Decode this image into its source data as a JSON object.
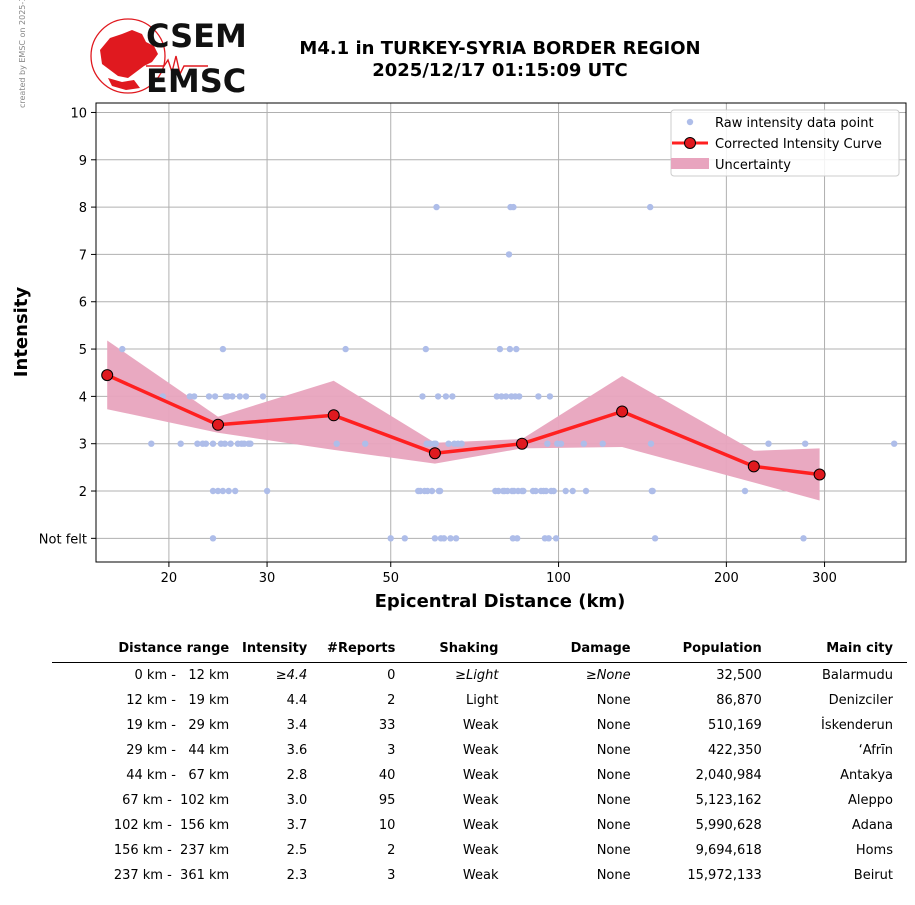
{
  "credit": "created by EMSC on 2025-12-18 01:00:31 UTC",
  "logo": {
    "top_text": "CSEM",
    "bottom_text": "EMSC"
  },
  "title": {
    "line1": "M4.1 in TURKEY-SYRIA BORDER REGION",
    "line2": "2025/12/17 01:15:09 UTC"
  },
  "colors": {
    "raw": "#aebde9",
    "curve": "#ff2020",
    "marker": "#e0191f",
    "band": "#e8a4be",
    "grid": "#b0b0b0"
  },
  "chart_data": {
    "type": "scatter",
    "xlabel": "Epicentral Distance (km)",
    "ylabel": "Intensity",
    "xscale": "log",
    "xlim": [
      14.8,
      420
    ],
    "ylim": [
      0.5,
      10.2
    ],
    "xticks": [
      20,
      30,
      50,
      100,
      200,
      300
    ],
    "yticks": [
      {
        "value": 1,
        "label": "Not felt"
      },
      {
        "value": 2,
        "label": "2"
      },
      {
        "value": 3,
        "label": "3"
      },
      {
        "value": 4,
        "label": "4"
      },
      {
        "value": 5,
        "label": "5"
      },
      {
        "value": 6,
        "label": "6"
      },
      {
        "value": 7,
        "label": "7"
      },
      {
        "value": 8,
        "label": "8"
      },
      {
        "value": 9,
        "label": "9"
      },
      {
        "value": 10,
        "label": "10"
      }
    ],
    "grid": true,
    "legend": {
      "position": "top-right",
      "entries": [
        "Raw intensity data point",
        "Corrected Intensity Curve",
        "Uncertainty"
      ]
    },
    "raw_points": [
      [
        16.5,
        5
      ],
      [
        18.6,
        3
      ],
      [
        19.5,
        4
      ],
      [
        21,
        3
      ],
      [
        21.8,
        4
      ],
      [
        22.2,
        4
      ],
      [
        22.5,
        3
      ],
      [
        23,
        3
      ],
      [
        23.3,
        3
      ],
      [
        23.6,
        4
      ],
      [
        24,
        2
      ],
      [
        24,
        3
      ],
      [
        24,
        1
      ],
      [
        24.2,
        4
      ],
      [
        24.5,
        2
      ],
      [
        24.8,
        3
      ],
      [
        25,
        5
      ],
      [
        25,
        2
      ],
      [
        25.2,
        3
      ],
      [
        25.3,
        4
      ],
      [
        25.5,
        4
      ],
      [
        25.6,
        2
      ],
      [
        25.8,
        3
      ],
      [
        26,
        4
      ],
      [
        26.3,
        2
      ],
      [
        26.6,
        3
      ],
      [
        26.8,
        4
      ],
      [
        27,
        3
      ],
      [
        27.3,
        3
      ],
      [
        27.5,
        4
      ],
      [
        27.8,
        3
      ],
      [
        28,
        3
      ],
      [
        29.5,
        4
      ],
      [
        30,
        2
      ],
      [
        40,
        3
      ],
      [
        41.5,
        5
      ],
      [
        45,
        3
      ],
      [
        50,
        1
      ],
      [
        53,
        1
      ],
      [
        56,
        2
      ],
      [
        56.5,
        2
      ],
      [
        57,
        4
      ],
      [
        57.5,
        2
      ],
      [
        57.8,
        5
      ],
      [
        58,
        3
      ],
      [
        58.2,
        2
      ],
      [
        58.8,
        3
      ],
      [
        59.3,
        2
      ],
      [
        59.8,
        3
      ],
      [
        60,
        1
      ],
      [
        60.2,
        3
      ],
      [
        60.4,
        8
      ],
      [
        60.8,
        4
      ],
      [
        61,
        2
      ],
      [
        61.3,
        2
      ],
      [
        61.5,
        1
      ],
      [
        62.3,
        1
      ],
      [
        62.8,
        4
      ],
      [
        63.5,
        3
      ],
      [
        64,
        1
      ],
      [
        64.5,
        4
      ],
      [
        65,
        3
      ],
      [
        65.5,
        1
      ],
      [
        66,
        3
      ],
      [
        67,
        3
      ],
      [
        77,
        2
      ],
      [
        77.5,
        4
      ],
      [
        78,
        2
      ],
      [
        78.5,
        5
      ],
      [
        79,
        4
      ],
      [
        79.5,
        2
      ],
      [
        80,
        2
      ],
      [
        80.5,
        4
      ],
      [
        81,
        2
      ],
      [
        81.5,
        7
      ],
      [
        81.8,
        5
      ],
      [
        82,
        8
      ],
      [
        82.3,
        4
      ],
      [
        82.5,
        2
      ],
      [
        82.8,
        1
      ],
      [
        83,
        8
      ],
      [
        83.2,
        2
      ],
      [
        83.6,
        4
      ],
      [
        84,
        5
      ],
      [
        84.3,
        1
      ],
      [
        84.6,
        2
      ],
      [
        85,
        4
      ],
      [
        85.5,
        3
      ],
      [
        86,
        2
      ],
      [
        86.5,
        2
      ],
      [
        87,
        3
      ],
      [
        90,
        2
      ],
      [
        91,
        2
      ],
      [
        92,
        4
      ],
      [
        93,
        2
      ],
      [
        94,
        2
      ],
      [
        94.5,
        1
      ],
      [
        95,
        2
      ],
      [
        95.5,
        3
      ],
      [
        96,
        1
      ],
      [
        96.5,
        4
      ],
      [
        97,
        2
      ],
      [
        98,
        2
      ],
      [
        99,
        1
      ],
      [
        99.5,
        3
      ],
      [
        101,
        3
      ],
      [
        103,
        2
      ],
      [
        106,
        2
      ],
      [
        111,
        3
      ],
      [
        112,
        2
      ],
      [
        120,
        3
      ],
      [
        146,
        8
      ],
      [
        146.5,
        3
      ],
      [
        147,
        2
      ],
      [
        147.5,
        2
      ],
      [
        149,
        1
      ],
      [
        216,
        2
      ],
      [
        238,
        3
      ],
      [
        275,
        1
      ],
      [
        277,
        3
      ],
      [
        400,
        3
      ]
    ],
    "curve": {
      "x": [
        15.5,
        24.5,
        39.5,
        60,
        86,
        130,
        224,
        294
      ],
      "y": [
        4.45,
        3.4,
        3.6,
        2.8,
        3.0,
        3.68,
        2.52,
        2.35
      ]
    },
    "uncertainty": {
      "x": [
        15.5,
        24.5,
        39.5,
        60,
        86,
        130,
        224,
        294
      ],
      "lower": [
        3.73,
        3.23,
        2.87,
        2.58,
        2.9,
        2.93,
        2.18,
        1.8
      ],
      "upper": [
        5.18,
        3.57,
        4.33,
        3.02,
        3.1,
        4.43,
        2.85,
        2.9
      ]
    }
  },
  "table": {
    "headers": [
      "Distance range",
      "Intensity",
      "#Reports",
      "Shaking",
      "Damage",
      "Population",
      "Main city"
    ],
    "rows": [
      {
        "range": "0 km -   12 km",
        "intensity": "≥4.4",
        "reports": "0",
        "shaking": "≥Light",
        "damage": "≥None",
        "population": "32,500",
        "city": "Balarmudu",
        "italic": true
      },
      {
        "range": "12 km -   19 km",
        "intensity": "4.4",
        "reports": "2",
        "shaking": "Light",
        "damage": "None",
        "population": "86,870",
        "city": "Denizciler"
      },
      {
        "range": "19 km -   29 km",
        "intensity": "3.4",
        "reports": "33",
        "shaking": "Weak",
        "damage": "None",
        "population": "510,169",
        "city": "İskenderun"
      },
      {
        "range": "29 km -   44 km",
        "intensity": "3.6",
        "reports": "3",
        "shaking": "Weak",
        "damage": "None",
        "population": "422,350",
        "city": "‘Afrīn"
      },
      {
        "range": "44 km -   67 km",
        "intensity": "2.8",
        "reports": "40",
        "shaking": "Weak",
        "damage": "None",
        "population": "2,040,984",
        "city": "Antakya"
      },
      {
        "range": "67 km -  102 km",
        "intensity": "3.0",
        "reports": "95",
        "shaking": "Weak",
        "damage": "None",
        "population": "5,123,162",
        "city": "Aleppo"
      },
      {
        "range": "102 km -  156 km",
        "intensity": "3.7",
        "reports": "10",
        "shaking": "Weak",
        "damage": "None",
        "population": "5,990,628",
        "city": "Adana"
      },
      {
        "range": "156 km -  237 km",
        "intensity": "2.5",
        "reports": "2",
        "shaking": "Weak",
        "damage": "None",
        "population": "9,694,618",
        "city": "Homs"
      },
      {
        "range": "237 km -  361 km",
        "intensity": "2.3",
        "reports": "3",
        "shaking": "Weak",
        "damage": "None",
        "population": "15,972,133",
        "city": "Beirut"
      }
    ]
  }
}
